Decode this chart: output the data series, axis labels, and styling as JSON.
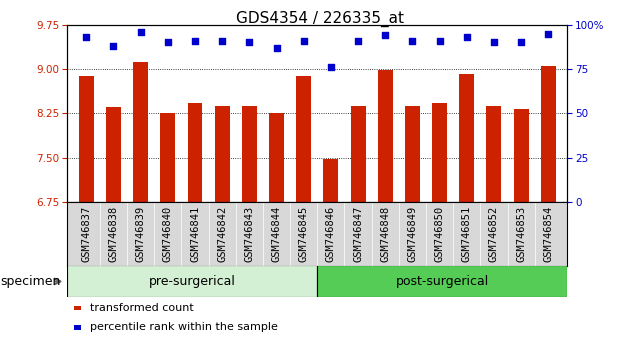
{
  "title": "GDS4354 / 226335_at",
  "specimens": [
    "GSM746837",
    "GSM746838",
    "GSM746839",
    "GSM746840",
    "GSM746841",
    "GSM746842",
    "GSM746843",
    "GSM746844",
    "GSM746845",
    "GSM746846",
    "GSM746847",
    "GSM746848",
    "GSM746849",
    "GSM746850",
    "GSM746851",
    "GSM746852",
    "GSM746853",
    "GSM746854"
  ],
  "transformed_counts": [
    8.88,
    8.35,
    9.12,
    8.25,
    8.42,
    8.38,
    8.38,
    8.25,
    8.88,
    7.47,
    8.38,
    8.98,
    8.38,
    8.42,
    8.92,
    8.38,
    8.32,
    9.05
  ],
  "percentile_ranks": [
    93,
    88,
    96,
    90,
    91,
    91,
    90,
    87,
    91,
    76,
    91,
    94,
    91,
    91,
    93,
    90,
    90,
    95
  ],
  "pre_count": 9,
  "post_count": 9,
  "pre_color": "#d4f0d4",
  "post_color": "#55cc55",
  "bar_color": "#cc2200",
  "dot_color": "#0000cc",
  "ylim_left": [
    6.75,
    9.75
  ],
  "ylim_right": [
    0,
    100
  ],
  "yticks_left": [
    6.75,
    7.5,
    8.25,
    9.0,
    9.75
  ],
  "yticks_right": [
    0,
    25,
    50,
    75,
    100
  ],
  "left_tick_color": "#cc2200",
  "right_tick_color": "#0000cc",
  "legend_items": [
    "transformed count",
    "percentile rank within the sample"
  ],
  "specimen_label": "specimen",
  "pre_label": "pre-surgerical",
  "post_label": "post-surgerical",
  "title_fontsize": 11,
  "tick_fontsize": 7.5,
  "axis_fontsize": 8,
  "group_fontsize": 9,
  "xticklabel_bg": "#d8d8d8"
}
